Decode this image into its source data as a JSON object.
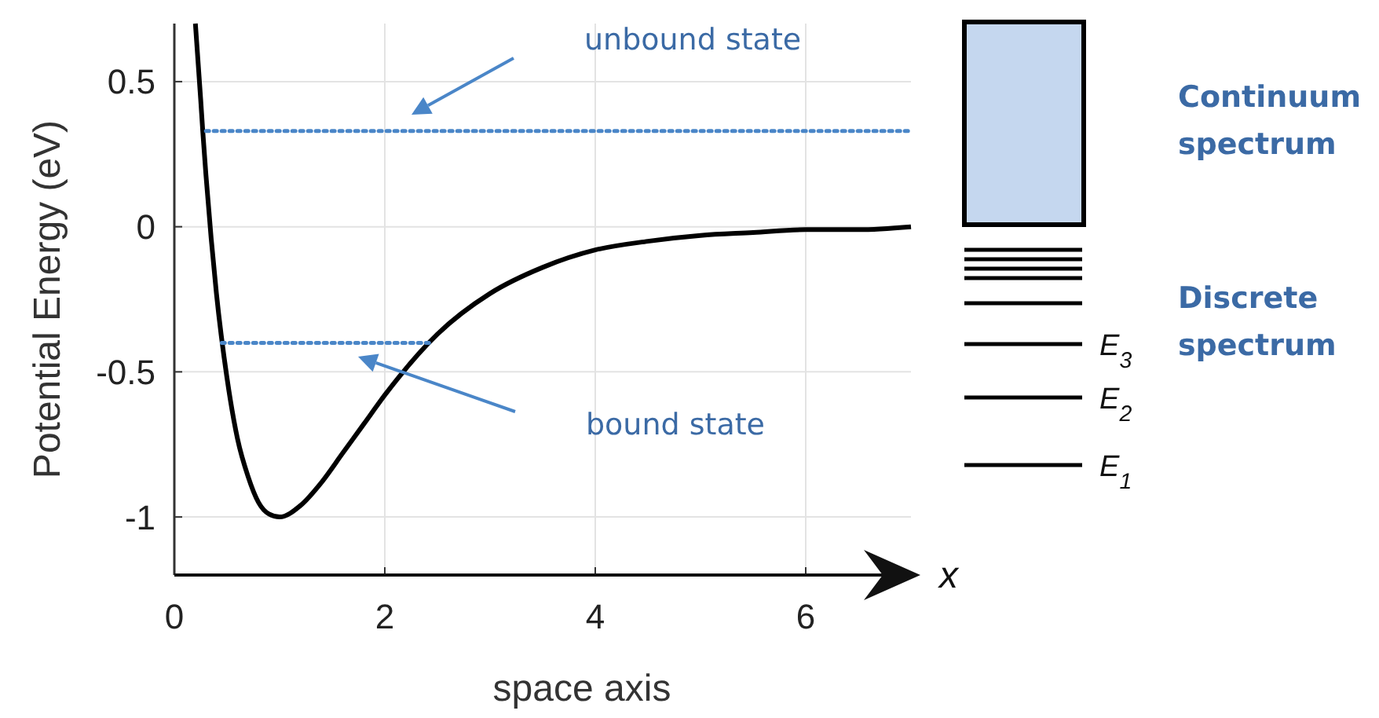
{
  "chart_data": {
    "type": "line",
    "xlabel": "space axis",
    "ylabel": "Potential Energy (eV)",
    "xlim": [
      0,
      7
    ],
    "ylim": [
      -1.2,
      0.7
    ],
    "xticks": [
      0,
      2,
      4,
      6
    ],
    "yticks": [
      -1,
      -0.5,
      0,
      0.5
    ],
    "grid": true,
    "series": [
      {
        "color": "#000000",
        "line_style": "solid",
        "x": [
          0.2,
          0.25,
          0.27,
          0.3,
          0.35,
          0.4,
          0.5,
          0.6,
          0.7,
          0.8,
          0.9,
          1.0,
          1.2,
          1.4,
          1.6,
          1.8,
          2.0,
          2.5,
          3.0,
          3.5,
          4.0,
          4.5,
          5.0,
          5.5,
          6.0,
          6.5,
          7.0
        ],
        "values": [
          0.7,
          0.44,
          0.33,
          0.18,
          -0.04,
          -0.23,
          -0.52,
          -0.73,
          -0.86,
          -0.95,
          -0.99,
          -1.0,
          -0.96,
          -0.88,
          -0.78,
          -0.68,
          -0.58,
          -0.37,
          -0.23,
          -0.14,
          -0.08,
          -0.05,
          -0.03,
          -0.02,
          -0.01,
          -0.01,
          0.0
        ]
      },
      {
        "color": "#4a86c8",
        "line_style": "dotted",
        "x": [
          0.3,
          7.0
        ],
        "values": [
          0.33,
          0.33
        ]
      },
      {
        "color": "#4a86c8",
        "line_style": "dotted",
        "x": [
          0.45,
          2.45
        ],
        "values": [
          -0.4,
          -0.4
        ]
      }
    ],
    "annotations": [
      "unbound state",
      "bound state",
      "Continuum spectrum",
      "Discrete spectrum",
      "E$_{3}$",
      "E$_{2}$",
      "E$_{1}$",
      "x"
    ]
  }
}
